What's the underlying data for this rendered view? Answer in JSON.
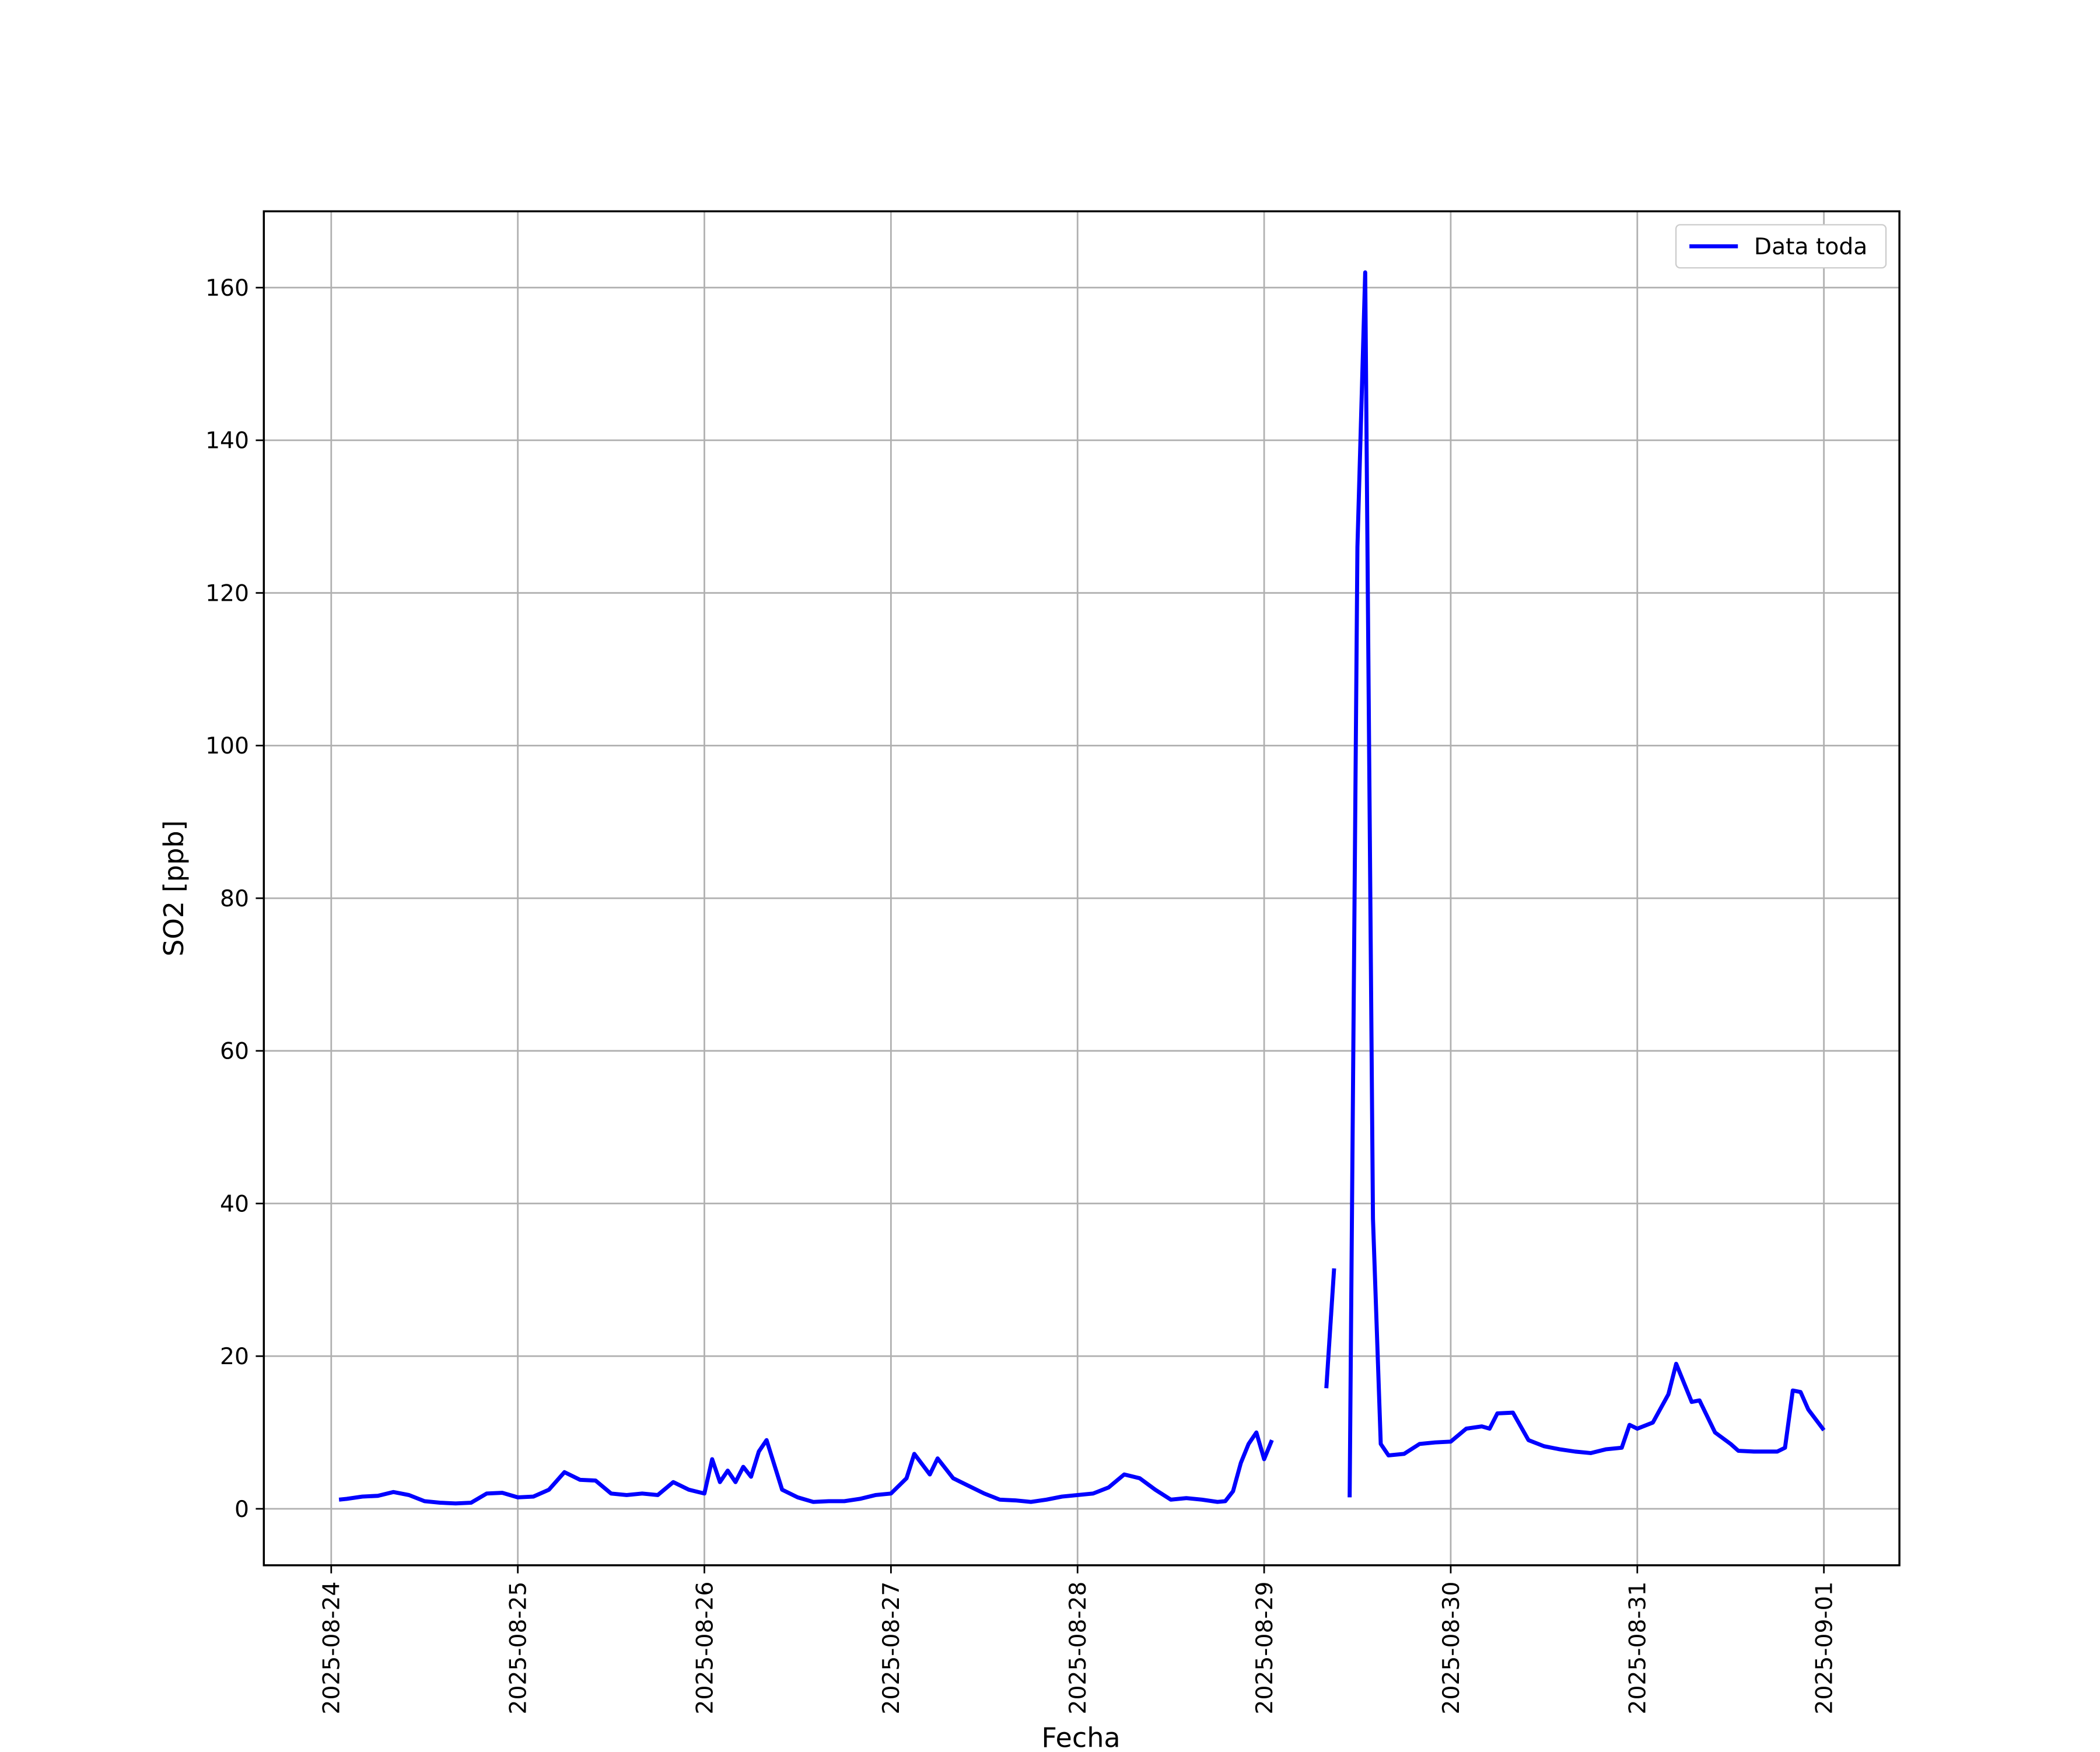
{
  "chart_data": {
    "type": "line",
    "xlabel": "Fecha",
    "ylabel": "SO2 [ppb]",
    "x": [
      "2025-08-24 01:00",
      "2025-08-24 02:00",
      "2025-08-24 04:00",
      "2025-08-24 06:00",
      "2025-08-24 08:00",
      "2025-08-24 10:00",
      "2025-08-24 12:00",
      "2025-08-24 14:00",
      "2025-08-24 16:00",
      "2025-08-24 18:00",
      "2025-08-24 20:00",
      "2025-08-24 22:00",
      "2025-08-25 00:00",
      "2025-08-25 02:00",
      "2025-08-25 04:00",
      "2025-08-25 06:00",
      "2025-08-25 08:00",
      "2025-08-25 10:00",
      "2025-08-25 12:00",
      "2025-08-25 14:00",
      "2025-08-25 16:00",
      "2025-08-25 18:00",
      "2025-08-25 20:00",
      "2025-08-25 22:00",
      "2025-08-26 00:00",
      "2025-08-26 01:00",
      "2025-08-26 02:00",
      "2025-08-26 03:00",
      "2025-08-26 04:00",
      "2025-08-26 05:00",
      "2025-08-26 06:00",
      "2025-08-26 07:00",
      "2025-08-26 08:00",
      "2025-08-26 10:00",
      "2025-08-26 12:00",
      "2025-08-26 14:00",
      "2025-08-26 16:00",
      "2025-08-26 18:00",
      "2025-08-26 20:00",
      "2025-08-26 22:00",
      "2025-08-27 00:00",
      "2025-08-27 02:00",
      "2025-08-27 03:00",
      "2025-08-27 05:00",
      "2025-08-27 06:00",
      "2025-08-27 08:00",
      "2025-08-27 10:00",
      "2025-08-27 12:00",
      "2025-08-27 14:00",
      "2025-08-27 16:00",
      "2025-08-27 18:00",
      "2025-08-27 20:00",
      "2025-08-27 22:00",
      "2025-08-28 00:00",
      "2025-08-28 02:00",
      "2025-08-28 04:00",
      "2025-08-28 06:00",
      "2025-08-28 08:00",
      "2025-08-28 10:00",
      "2025-08-28 12:00",
      "2025-08-28 14:00",
      "2025-08-28 16:00",
      "2025-08-28 18:00",
      "2025-08-28 19:00",
      "2025-08-28 20:00",
      "2025-08-28 21:00",
      "2025-08-28 22:00",
      "2025-08-28 23:00",
      "2025-08-29 00:00",
      "2025-08-29 01:00",
      "2025-08-29 04:00",
      "2025-08-29 08:00",
      "2025-08-29 09:00",
      "2025-08-29 10:00",
      "2025-08-29 11:00",
      "2025-08-29 12:00",
      "2025-08-29 13:00",
      "2025-08-29 14:00",
      "2025-08-29 15:00",
      "2025-08-29 16:00",
      "2025-08-29 18:00",
      "2025-08-29 20:00",
      "2025-08-29 22:00",
      "2025-08-30 00:00",
      "2025-08-30 02:00",
      "2025-08-30 04:00",
      "2025-08-30 05:00",
      "2025-08-30 06:00",
      "2025-08-30 08:00",
      "2025-08-30 10:00",
      "2025-08-30 12:00",
      "2025-08-30 14:00",
      "2025-08-30 16:00",
      "2025-08-30 18:00",
      "2025-08-30 20:00",
      "2025-08-30 22:00",
      "2025-08-30 23:00",
      "2025-08-31 00:00",
      "2025-08-31 02:00",
      "2025-08-31 04:00",
      "2025-08-31 05:00",
      "2025-08-31 07:00",
      "2025-08-31 08:00",
      "2025-08-31 10:00",
      "2025-08-31 12:00",
      "2025-08-31 13:00",
      "2025-08-31 15:00",
      "2025-08-31 18:00",
      "2025-08-31 19:00",
      "2025-08-31 20:00",
      "2025-08-31 21:00",
      "2025-08-31 22:00",
      "2025-09-01 00:00"
    ],
    "series": [
      {
        "name": "Data toda",
        "color": "#0000ff",
        "values": [
          1.2,
          1.3,
          1.6,
          1.7,
          2.2,
          1.8,
          1.0,
          0.8,
          0.7,
          0.8,
          2.0,
          2.1,
          1.5,
          1.6,
          2.5,
          4.8,
          3.8,
          3.7,
          2.0,
          1.8,
          2.0,
          1.8,
          3.5,
          2.5,
          2.0,
          6.5,
          3.5,
          5.0,
          3.5,
          5.5,
          4.2,
          7.5,
          9.0,
          2.5,
          1.5,
          0.9,
          1.0,
          1.0,
          1.3,
          1.8,
          2.0,
          4.0,
          7.2,
          4.5,
          6.6,
          4.0,
          3.0,
          2.0,
          1.2,
          1.1,
          0.9,
          1.2,
          1.6,
          1.8,
          2.0,
          2.8,
          4.5,
          4.0,
          2.5,
          1.2,
          1.4,
          1.2,
          0.9,
          1.0,
          2.3,
          6.0,
          8.5,
          10.0,
          6.5,
          9.0,
          null,
          15.8,
          31.5,
          null,
          1.5,
          126,
          162,
          38,
          8.5,
          7.0,
          7.2,
          8.5,
          8.7,
          8.8,
          10.5,
          10.8,
          10.5,
          12.5,
          12.6,
          9.0,
          8.2,
          7.8,
          7.5,
          7.3,
          7.8,
          8.0,
          11.0,
          10.5,
          11.3,
          15.0,
          19.0,
          14.0,
          14.2,
          10.0,
          8.5,
          7.6,
          7.5,
          7.5,
          8.0,
          15.5,
          15.3,
          13.0,
          10.3
        ]
      }
    ],
    "xlim": [
      "2025-08-23 15:20",
      "2025-09-01 09:43"
    ],
    "xticks": [
      "2025-08-24",
      "2025-08-25",
      "2025-08-26",
      "2025-08-27",
      "2025-08-28",
      "2025-08-29",
      "2025-08-30",
      "2025-08-31",
      "2025-09-01"
    ],
    "ylim": [
      -7.4,
      170
    ],
    "yticks": [
      0,
      20,
      40,
      60,
      80,
      100,
      120,
      140,
      160
    ],
    "grid": true,
    "legend": "upper right"
  }
}
